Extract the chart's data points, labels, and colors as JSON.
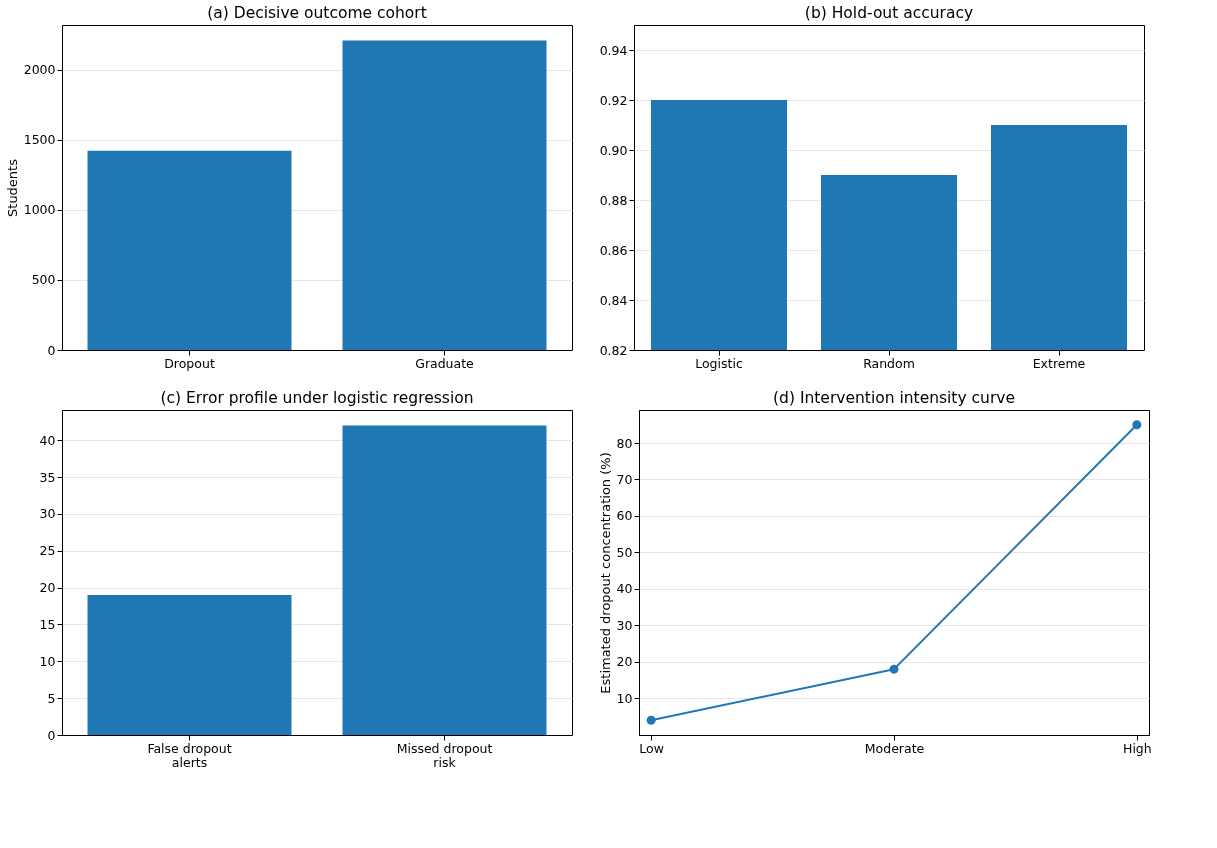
{
  "chart_data": [
    {
      "type": "bar",
      "title": "(a) Decisive outcome cohort",
      "ylabel": "Students",
      "categories": [
        "Dropout",
        "Graduate"
      ],
      "values": [
        1421,
        2209
      ],
      "color": "#1f77b4",
      "ylim": [
        0,
        2319
      ],
      "yticks": [
        0,
        500,
        1000,
        1500,
        2000
      ],
      "grid": "y"
    },
    {
      "type": "bar",
      "title": "(b) Hold-out accuracy",
      "categories": [
        "Logistic",
        "Random",
        "Extreme"
      ],
      "values": [
        0.92,
        0.89,
        0.91
      ],
      "color": "#1f77b4",
      "ylim": [
        0.82,
        0.95
      ],
      "yticks": [
        {
          "value": 0.82,
          "label": "0.82"
        },
        {
          "value": 0.84,
          "label": "0.84"
        },
        {
          "value": 0.86,
          "label": "0.86"
        },
        {
          "value": 0.88,
          "label": "0.88"
        },
        {
          "value": 0.9,
          "label": "0.90"
        },
        {
          "value": 0.92,
          "label": "0.92"
        },
        {
          "value": 0.94,
          "label": "0.94"
        }
      ],
      "grid": "y"
    },
    {
      "type": "bar",
      "title": "(c) Error profile under logistic regression",
      "categories": [
        "False dropout\nalerts",
        "Missed dropout\nrisk"
      ],
      "values": [
        19,
        42
      ],
      "color": "#1f77b4",
      "ylim": [
        0,
        44.1
      ],
      "yticks": [
        0,
        5,
        10,
        15,
        20,
        25,
        30,
        35,
        40
      ],
      "grid": "y"
    },
    {
      "type": "line",
      "title": "(d) Intervention intensity curve",
      "ylabel": "Estimated dropout concentration (%)",
      "categories": [
        "Low",
        "Moderate",
        "High"
      ],
      "values": [
        4,
        18,
        85
      ],
      "color": "#1f77b4",
      "marker": "circle",
      "ylim": [
        -0.05,
        89.05
      ],
      "yticks": [
        10,
        20,
        30,
        40,
        50,
        60,
        70,
        80
      ],
      "grid": "y"
    }
  ]
}
